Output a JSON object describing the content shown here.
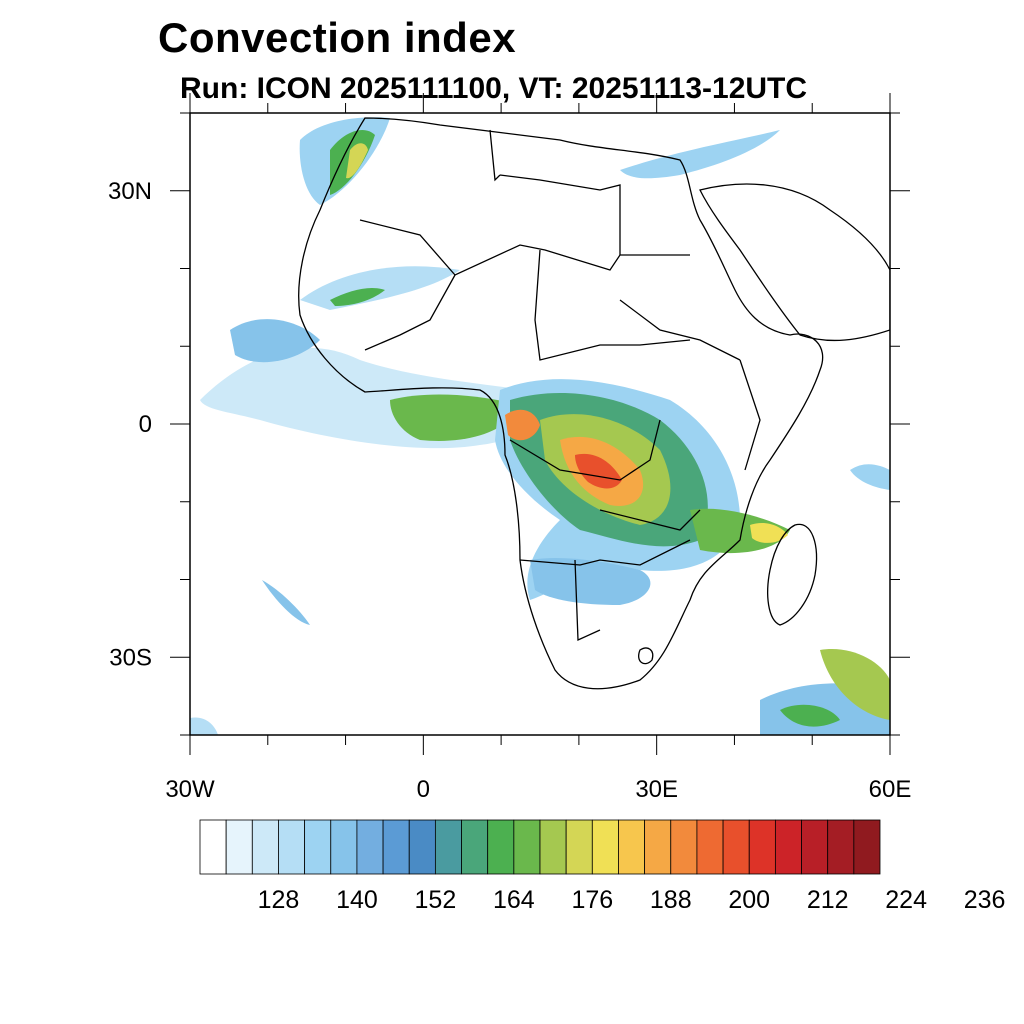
{
  "title": "Convection index",
  "subtitle": "Run: ICON 2025111100,  VT: 20251113-12UTC",
  "map": {
    "projection": "cylindrical equidistant",
    "lon_range": [
      -30,
      60
    ],
    "lat_range": [
      -40,
      40
    ],
    "lat_ticks": [
      {
        "value": 30,
        "label": "30N"
      },
      {
        "value": 0,
        "label": "0"
      },
      {
        "value": -30,
        "label": "30S"
      }
    ],
    "lon_ticks": [
      {
        "value": -30,
        "label": "30W"
      },
      {
        "value": 0,
        "label": "0"
      },
      {
        "value": 30,
        "label": "30E"
      },
      {
        "value": 60,
        "label": "60E"
      }
    ]
  },
  "colorbar": {
    "colors": [
      "#ffffff",
      "#e6f4fc",
      "#cde9f8",
      "#b5def5",
      "#9dd3f2",
      "#86c3ea",
      "#73aee0",
      "#5b9bd5",
      "#4a8bc5",
      "#4a9ba0",
      "#4aa67a",
      "#4cb050",
      "#6ab84c",
      "#a5c850",
      "#d4d655",
      "#f0e055",
      "#f7c64d",
      "#f5a845",
      "#f28a3c",
      "#ee6a32",
      "#e8502c",
      "#dd3328",
      "#cc2328",
      "#b81f27",
      "#a41d24",
      "#901a1f"
    ],
    "labels": [
      "128",
      "140",
      "152",
      "164",
      "176",
      "188",
      "200",
      "212",
      "224",
      "236"
    ]
  }
}
